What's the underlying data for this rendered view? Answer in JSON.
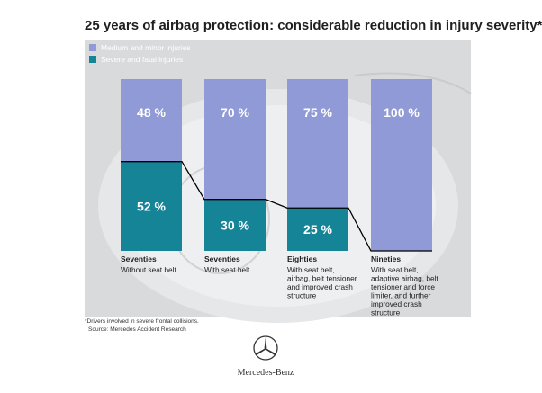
{
  "title": "25 years of airbag protection: considerable reduction in injury severity*",
  "footnote": {
    "line1": "*Drivers involved in severe frontal collisions.",
    "line2": "Source: Mercedes Accident Research"
  },
  "brand": "Mercedes-Benz",
  "colors": {
    "medium_minor": "#8f9ad6",
    "severe_fatal": "#158497",
    "panel": "#d8dadc"
  },
  "chart_data": {
    "type": "bar",
    "stacked": true,
    "categories": [
      "Seventies",
      "Seventies",
      "Eighties",
      "Nineties"
    ],
    "category_notes": [
      "Without seat belt",
      "With seat belt",
      "With seat belt, airbag, belt tensioner and improved crash structure",
      "With seat belt, adaptive airbag, belt tensioner and force limiter, and further improved crash structure"
    ],
    "series": [
      {
        "name": "Medium and minor injuries",
        "values": [
          48,
          70,
          75,
          100
        ]
      },
      {
        "name": "Severe and fatal injuries",
        "values": [
          52,
          30,
          25,
          0
        ]
      }
    ],
    "value_labels": {
      "medium_minor": [
        "48 %",
        "70 %",
        "75 %",
        "100 %"
      ],
      "severe_fatal": [
        "52 %",
        "30 %",
        "25 %",
        ""
      ]
    },
    "ylim": [
      0,
      100
    ],
    "legend": "top-left",
    "grid": false
  }
}
